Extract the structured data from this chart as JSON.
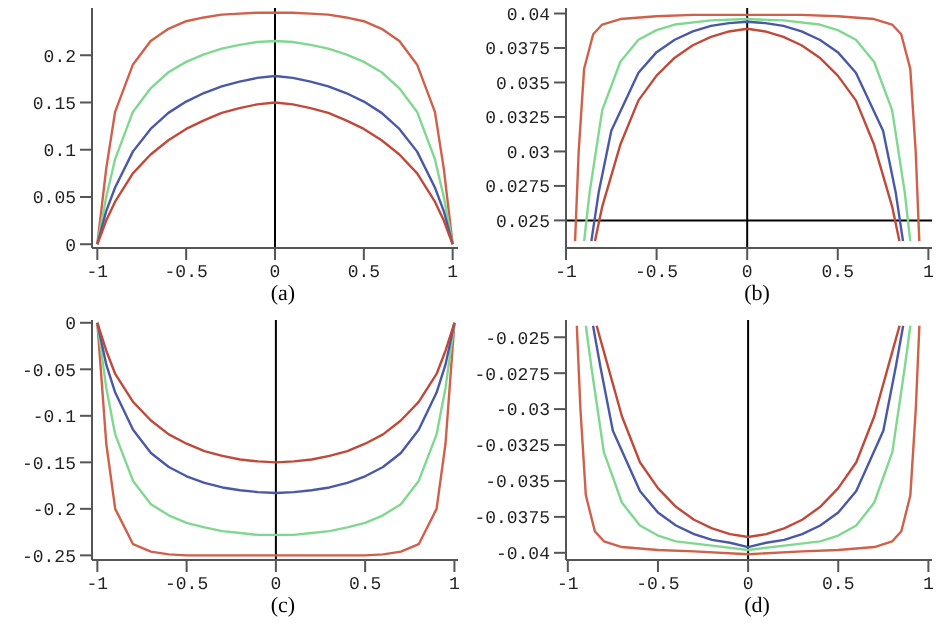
{
  "chart_data": [
    {
      "type": "line",
      "xlabel": "(a)",
      "xlim": [
        -1.03,
        1.03
      ],
      "xticks": [
        -1,
        -0.5,
        0,
        0.5,
        1
      ],
      "ylim": [
        -0.004,
        0.25
      ],
      "yticks": [
        0,
        0.05,
        0.1,
        0.15,
        0.2
      ],
      "ref_lines": [
        {
          "axis": "x",
          "value": 0,
          "color": "#000000"
        }
      ],
      "x": [
        -1,
        -0.95,
        -0.9,
        -0.8,
        -0.7,
        -0.6,
        -0.5,
        -0.4,
        -0.3,
        -0.2,
        -0.1,
        0,
        0.1,
        0.2,
        0.3,
        0.4,
        0.5,
        0.6,
        0.7,
        0.8,
        0.9,
        0.95,
        1
      ],
      "series": [
        {
          "color": "#d0604a",
          "values": [
            0,
            0.08,
            0.14,
            0.19,
            0.215,
            0.228,
            0.236,
            0.24,
            0.243,
            0.244,
            0.245,
            0.245,
            0.245,
            0.244,
            0.243,
            0.24,
            0.236,
            0.228,
            0.215,
            0.19,
            0.14,
            0.08,
            0
          ]
        },
        {
          "color": "#80d890",
          "values": [
            0,
            0.05,
            0.09,
            0.14,
            0.165,
            0.182,
            0.193,
            0.201,
            0.207,
            0.211,
            0.214,
            0.215,
            0.214,
            0.211,
            0.207,
            0.201,
            0.193,
            0.182,
            0.165,
            0.14,
            0.09,
            0.05,
            0
          ]
        },
        {
          "color": "#4a58a8",
          "values": [
            0,
            0.035,
            0.06,
            0.098,
            0.122,
            0.139,
            0.151,
            0.16,
            0.167,
            0.172,
            0.176,
            0.178,
            0.176,
            0.172,
            0.167,
            0.16,
            0.151,
            0.139,
            0.122,
            0.098,
            0.06,
            0.035,
            0
          ]
        },
        {
          "color": "#c04a3a",
          "values": [
            0,
            0.025,
            0.045,
            0.075,
            0.095,
            0.11,
            0.122,
            0.131,
            0.139,
            0.144,
            0.148,
            0.15,
            0.148,
            0.144,
            0.139,
            0.131,
            0.122,
            0.11,
            0.095,
            0.075,
            0.045,
            0.025,
            0
          ]
        }
      ]
    },
    {
      "type": "line",
      "xlabel": "(b)",
      "xlim": [
        -1,
        1.02
      ],
      "xticks": [
        -1,
        -0.5,
        0,
        0.5,
        1
      ],
      "ylim": [
        0.023,
        0.0404
      ],
      "yticks": [
        0.025,
        0.0275,
        0.03,
        0.0325,
        0.035,
        0.0375,
        0.04
      ],
      "ref_lines": [
        {
          "axis": "x",
          "value": 0,
          "color": "#000000"
        },
        {
          "axis": "y",
          "value": 0.025,
          "color": "#000000"
        }
      ],
      "series": [
        {
          "color": "#d0604a",
          "x": [
            -0.95,
            -0.93,
            -0.9,
            -0.85,
            -0.8,
            -0.7,
            -0.5,
            -0.3,
            0,
            0.3,
            0.5,
            0.7,
            0.8,
            0.85,
            0.9,
            0.93,
            0.95
          ],
          "values": [
            0.0235,
            0.03,
            0.036,
            0.0385,
            0.0392,
            0.0396,
            0.0398,
            0.0399,
            0.0399,
            0.0399,
            0.0398,
            0.0396,
            0.0392,
            0.0385,
            0.036,
            0.03,
            0.0235
          ]
        },
        {
          "color": "#80d890",
          "x": [
            -0.9,
            -0.87,
            -0.8,
            -0.7,
            -0.6,
            -0.5,
            -0.4,
            -0.2,
            0,
            0.2,
            0.4,
            0.5,
            0.6,
            0.7,
            0.8,
            0.87,
            0.9
          ],
          "values": [
            0.0235,
            0.027,
            0.033,
            0.0365,
            0.0381,
            0.0388,
            0.0392,
            0.0395,
            0.0396,
            0.0395,
            0.0392,
            0.0388,
            0.0381,
            0.0365,
            0.033,
            0.027,
            0.0235
          ]
        },
        {
          "color": "#4a58a8",
          "x": [
            -0.86,
            -0.82,
            -0.75,
            -0.6,
            -0.5,
            -0.4,
            -0.3,
            -0.2,
            -0.1,
            0,
            0.1,
            0.2,
            0.3,
            0.4,
            0.5,
            0.6,
            0.75,
            0.82,
            0.86
          ],
          "values": [
            0.0235,
            0.027,
            0.0315,
            0.0357,
            0.0372,
            0.0381,
            0.0387,
            0.0391,
            0.0393,
            0.0394,
            0.0393,
            0.0391,
            0.0387,
            0.0381,
            0.0372,
            0.0357,
            0.0315,
            0.027,
            0.0235
          ]
        },
        {
          "color": "#c04a3a",
          "x": [
            -0.84,
            -0.8,
            -0.7,
            -0.6,
            -0.5,
            -0.4,
            -0.3,
            -0.2,
            -0.1,
            0,
            0.1,
            0.2,
            0.3,
            0.4,
            0.5,
            0.6,
            0.7,
            0.8,
            0.84
          ],
          "values": [
            0.0235,
            0.026,
            0.0305,
            0.0337,
            0.0355,
            0.0368,
            0.0377,
            0.0383,
            0.0387,
            0.0389,
            0.0387,
            0.0383,
            0.0377,
            0.0368,
            0.0355,
            0.0337,
            0.0305,
            0.026,
            0.0235
          ]
        }
      ]
    },
    {
      "type": "line",
      "xlabel": "(c)",
      "xlim": [
        -1.03,
        1.02
      ],
      "xticks": [
        -1,
        -0.5,
        0,
        0.5,
        1
      ],
      "ylim": [
        -0.255,
        0.003
      ],
      "yticks": [
        0,
        -0.05,
        -0.1,
        -0.15,
        -0.2,
        -0.25
      ],
      "ref_lines": [
        {
          "axis": "x",
          "value": 0,
          "color": "#000000"
        }
      ],
      "x": [
        -1,
        -0.95,
        -0.9,
        -0.8,
        -0.7,
        -0.6,
        -0.5,
        -0.4,
        -0.3,
        -0.2,
        -0.1,
        0,
        0.1,
        0.2,
        0.3,
        0.4,
        0.5,
        0.6,
        0.7,
        0.8,
        0.9,
        0.95,
        1
      ],
      "series": [
        {
          "color": "#d0604a",
          "values": [
            0,
            -0.13,
            -0.2,
            -0.238,
            -0.246,
            -0.249,
            -0.25,
            -0.25,
            -0.25,
            -0.25,
            -0.25,
            -0.25,
            -0.25,
            -0.25,
            -0.25,
            -0.25,
            -0.25,
            -0.249,
            -0.246,
            -0.238,
            -0.2,
            -0.13,
            0
          ]
        },
        {
          "color": "#80d890",
          "values": [
            0,
            -0.07,
            -0.12,
            -0.17,
            -0.195,
            -0.207,
            -0.215,
            -0.22,
            -0.224,
            -0.226,
            -0.228,
            -0.228,
            -0.228,
            -0.226,
            -0.224,
            -0.22,
            -0.215,
            -0.207,
            -0.195,
            -0.17,
            -0.12,
            -0.07,
            0
          ]
        },
        {
          "color": "#4a58a8",
          "values": [
            0,
            -0.045,
            -0.075,
            -0.115,
            -0.14,
            -0.155,
            -0.165,
            -0.172,
            -0.177,
            -0.18,
            -0.182,
            -0.183,
            -0.182,
            -0.18,
            -0.177,
            -0.172,
            -0.165,
            -0.155,
            -0.14,
            -0.115,
            -0.075,
            -0.045,
            0
          ]
        },
        {
          "color": "#c04a3a",
          "values": [
            0,
            -0.03,
            -0.055,
            -0.085,
            -0.105,
            -0.12,
            -0.13,
            -0.138,
            -0.143,
            -0.147,
            -0.149,
            -0.15,
            -0.149,
            -0.147,
            -0.143,
            -0.138,
            -0.13,
            -0.12,
            -0.105,
            -0.085,
            -0.055,
            -0.03,
            0
          ]
        }
      ]
    },
    {
      "type": "line",
      "xlabel": "(d)",
      "xlim": [
        -1.01,
        1.02
      ],
      "xticks": [
        -1,
        -0.5,
        0,
        0.5,
        1
      ],
      "ylim": [
        -0.0405,
        -0.0238
      ],
      "yticks": [
        -0.025,
        -0.0275,
        -0.03,
        -0.0325,
        -0.035,
        -0.0375,
        -0.04
      ],
      "ref_lines": [
        {
          "axis": "x",
          "value": 0,
          "color": "#000000"
        }
      ],
      "series": [
        {
          "color": "#d0604a",
          "x": [
            -0.95,
            -0.93,
            -0.9,
            -0.85,
            -0.8,
            -0.7,
            -0.5,
            -0.3,
            0,
            0.3,
            0.5,
            0.7,
            0.8,
            0.85,
            0.9,
            0.93,
            0.95
          ],
          "values": [
            -0.0242,
            -0.03,
            -0.036,
            -0.0385,
            -0.0392,
            -0.0396,
            -0.0398,
            -0.0399,
            -0.0401,
            -0.0399,
            -0.0398,
            -0.0396,
            -0.0392,
            -0.0385,
            -0.036,
            -0.03,
            -0.0242
          ]
        },
        {
          "color": "#80d890",
          "x": [
            -0.9,
            -0.87,
            -0.8,
            -0.7,
            -0.6,
            -0.5,
            -0.4,
            -0.2,
            0,
            0.2,
            0.4,
            0.5,
            0.6,
            0.7,
            0.8,
            0.87,
            0.9
          ],
          "values": [
            -0.0242,
            -0.027,
            -0.033,
            -0.0365,
            -0.0381,
            -0.0388,
            -0.0392,
            -0.0395,
            -0.0398,
            -0.0395,
            -0.0392,
            -0.0388,
            -0.0381,
            -0.0365,
            -0.033,
            -0.027,
            -0.0242
          ]
        },
        {
          "color": "#4a58a8",
          "x": [
            -0.86,
            -0.82,
            -0.75,
            -0.6,
            -0.5,
            -0.4,
            -0.3,
            -0.2,
            -0.1,
            0,
            0.1,
            0.2,
            0.3,
            0.4,
            0.5,
            0.6,
            0.75,
            0.82,
            0.86
          ],
          "values": [
            -0.0242,
            -0.027,
            -0.0315,
            -0.0357,
            -0.0372,
            -0.0381,
            -0.0387,
            -0.0391,
            -0.0393,
            -0.0396,
            -0.0393,
            -0.0391,
            -0.0387,
            -0.0381,
            -0.0372,
            -0.0357,
            -0.0315,
            -0.027,
            -0.0242
          ]
        },
        {
          "color": "#c04a3a",
          "x": [
            -0.84,
            -0.8,
            -0.7,
            -0.6,
            -0.5,
            -0.4,
            -0.3,
            -0.2,
            -0.1,
            0,
            0.1,
            0.2,
            0.3,
            0.4,
            0.5,
            0.6,
            0.7,
            0.8,
            0.84
          ],
          "values": [
            -0.0242,
            -0.026,
            -0.0305,
            -0.0337,
            -0.0355,
            -0.0368,
            -0.0377,
            -0.0383,
            -0.0387,
            -0.0389,
            -0.0387,
            -0.0383,
            -0.0377,
            -0.0368,
            -0.0355,
            -0.0337,
            -0.0305,
            -0.026,
            -0.0242
          ]
        }
      ]
    }
  ]
}
